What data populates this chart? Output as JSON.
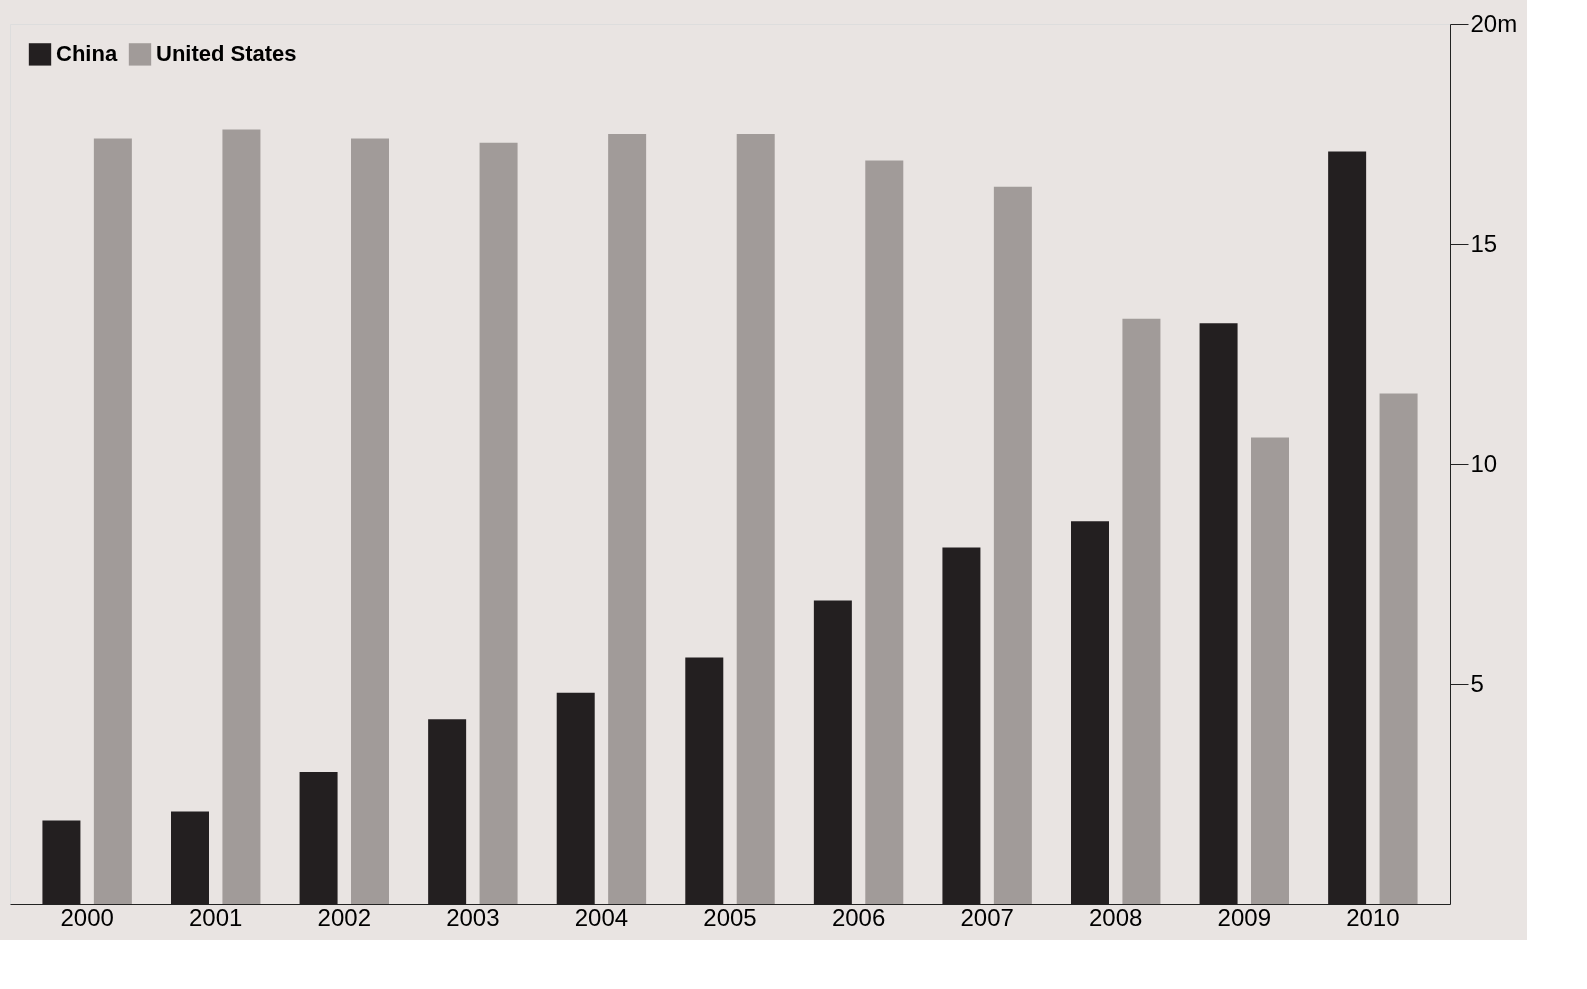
{
  "chart_data": {
    "type": "bar",
    "categories": [
      "2000",
      "2001",
      "2002",
      "2003",
      "2004",
      "2005",
      "2006",
      "2007",
      "2008",
      "2009",
      "2010"
    ],
    "series": [
      {
        "name": "China",
        "color": "#231f20",
        "values": [
          1.9,
          2.1,
          3.0,
          4.2,
          4.8,
          5.6,
          6.9,
          8.1,
          8.7,
          13.2,
          17.1
        ]
      },
      {
        "name": "United States",
        "color": "#a19b99",
        "values": [
          17.4,
          17.6,
          17.4,
          17.3,
          17.5,
          17.5,
          16.9,
          16.3,
          13.3,
          10.6,
          11.6
        ]
      }
    ],
    "ylim": [
      0,
      20
    ],
    "yticks": [
      5,
      10,
      15,
      {
        "value": 20,
        "label": "20m"
      }
    ],
    "grid": false,
    "legend": "top left"
  }
}
